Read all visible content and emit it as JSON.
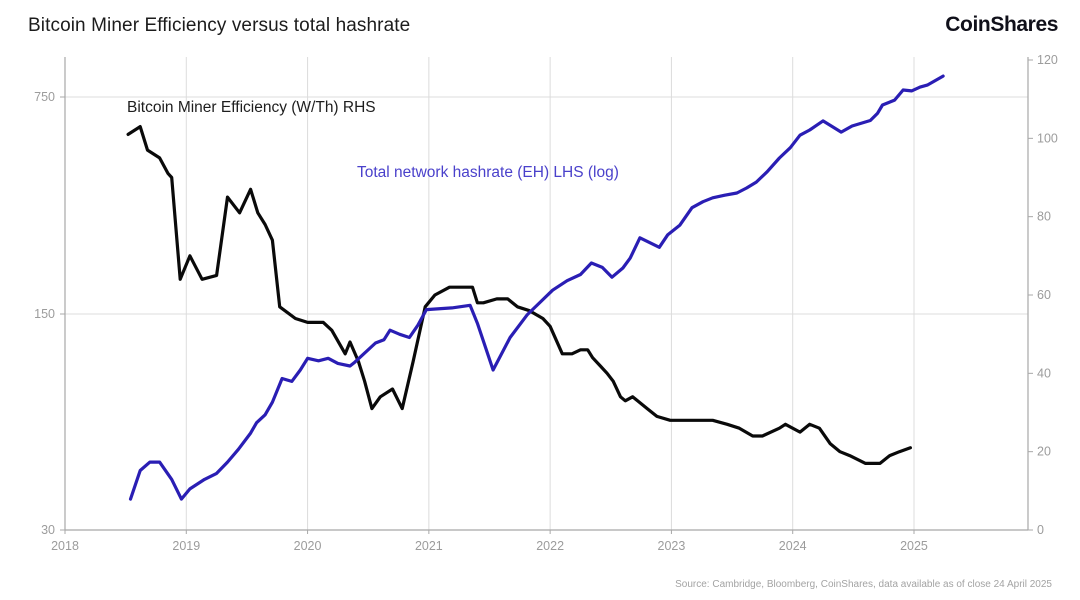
{
  "header": {
    "title": "Bitcoin Miner Efficiency versus total hashrate",
    "logo_text": "CoinShares"
  },
  "footer": {
    "source": "Source: Cambridge, Bloomberg, CoinShares, data available as of close 24 April 2025"
  },
  "colors": {
    "efficiency_line": "#0a0a0a",
    "hashrate_line": "#2a1eb4",
    "hashrate_label": "#4a41cb",
    "grid": "#dcdcdc",
    "axis": "#a8a8a8",
    "tick_text": "#9c9c9c"
  },
  "chart_data": {
    "type": "line",
    "title": "Bitcoin Miner Efficiency versus total hashrate",
    "x_axis": {
      "min": 2018,
      "max": 2025.94,
      "ticks": [
        2018,
        2019,
        2020,
        2021,
        2022,
        2023,
        2024,
        2025
      ]
    },
    "left_axis": {
      "scale": "log",
      "unit": "EH",
      "ticks": [
        750,
        150,
        30
      ]
    },
    "right_axis": {
      "scale": "linear",
      "unit": "W/Th",
      "min": 0,
      "max": 120,
      "ticks": [
        120,
        100,
        80,
        60,
        40,
        20,
        0
      ]
    },
    "grid": "on",
    "series": [
      {
        "name": "Bitcoin Miner Efficiency (W/Th) RHS",
        "axis": "right",
        "color": "#0a0a0a",
        "points": [
          [
            2018.52,
            101
          ],
          [
            2018.62,
            103
          ],
          [
            2018.68,
            97
          ],
          [
            2018.78,
            95
          ],
          [
            2018.85,
            91
          ],
          [
            2018.88,
            90
          ],
          [
            2018.95,
            64
          ],
          [
            2019.03,
            70
          ],
          [
            2019.13,
            64
          ],
          [
            2019.25,
            65
          ],
          [
            2019.34,
            85
          ],
          [
            2019.44,
            81
          ],
          [
            2019.53,
            87
          ],
          [
            2019.59,
            81
          ],
          [
            2019.65,
            78
          ],
          [
            2019.71,
            74
          ],
          [
            2019.77,
            57
          ],
          [
            2019.9,
            54
          ],
          [
            2020.0,
            53
          ],
          [
            2020.04,
            53
          ],
          [
            2020.13,
            53
          ],
          [
            2020.2,
            51
          ],
          [
            2020.31,
            45
          ],
          [
            2020.35,
            48
          ],
          [
            2020.42,
            43
          ],
          [
            2020.47,
            38
          ],
          [
            2020.53,
            31
          ],
          [
            2020.6,
            34
          ],
          [
            2020.7,
            36
          ],
          [
            2020.78,
            31
          ],
          [
            2020.87,
            43
          ],
          [
            2020.97,
            57
          ],
          [
            2021.05,
            60
          ],
          [
            2021.17,
            62
          ],
          [
            2021.36,
            62
          ],
          [
            2021.4,
            58
          ],
          [
            2021.45,
            58
          ],
          [
            2021.56,
            59
          ],
          [
            2021.65,
            59
          ],
          [
            2021.73,
            57
          ],
          [
            2021.83,
            56
          ],
          [
            2021.94,
            54
          ],
          [
            2022.0,
            52
          ],
          [
            2022.1,
            45
          ],
          [
            2022.18,
            45
          ],
          [
            2022.25,
            46
          ],
          [
            2022.31,
            46
          ],
          [
            2022.35,
            44
          ],
          [
            2022.41,
            42
          ],
          [
            2022.47,
            40
          ],
          [
            2022.52,
            38
          ],
          [
            2022.58,
            34
          ],
          [
            2022.62,
            33
          ],
          [
            2022.68,
            34
          ],
          [
            2022.8,
            31
          ],
          [
            2022.88,
            29
          ],
          [
            2022.99,
            28
          ],
          [
            2023.09,
            28
          ],
          [
            2023.34,
            28
          ],
          [
            2023.46,
            27
          ],
          [
            2023.56,
            26
          ],
          [
            2023.67,
            24
          ],
          [
            2023.75,
            24
          ],
          [
            2023.89,
            26
          ],
          [
            2023.94,
            27
          ],
          [
            2024.06,
            25
          ],
          [
            2024.14,
            27
          ],
          [
            2024.22,
            26
          ],
          [
            2024.31,
            22
          ],
          [
            2024.39,
            20
          ],
          [
            2024.47,
            19
          ],
          [
            2024.6,
            17
          ],
          [
            2024.72,
            17
          ],
          [
            2024.8,
            19
          ],
          [
            2024.88,
            20
          ],
          [
            2024.97,
            21
          ]
        ]
      },
      {
        "name": "Total network hashrate (EH) LHS (log)",
        "axis": "left",
        "color": "#2a1eb4",
        "points": [
          [
            2018.54,
            38
          ],
          [
            2018.62,
            47
          ],
          [
            2018.7,
            50
          ],
          [
            2018.78,
            50
          ],
          [
            2018.88,
            44
          ],
          [
            2018.96,
            38
          ],
          [
            2019.03,
            41
          ],
          [
            2019.15,
            44
          ],
          [
            2019.25,
            46
          ],
          [
            2019.34,
            50
          ],
          [
            2019.43,
            55
          ],
          [
            2019.53,
            62
          ],
          [
            2019.58,
            67
          ],
          [
            2019.65,
            71
          ],
          [
            2019.71,
            78
          ],
          [
            2019.79,
            93
          ],
          [
            2019.87,
            91
          ],
          [
            2019.94,
            99
          ],
          [
            2020.0,
            108
          ],
          [
            2020.09,
            106
          ],
          [
            2020.17,
            108
          ],
          [
            2020.25,
            104
          ],
          [
            2020.35,
            102
          ],
          [
            2020.39,
            105
          ],
          [
            2020.56,
            121
          ],
          [
            2020.63,
            124
          ],
          [
            2020.68,
            133
          ],
          [
            2020.76,
            129
          ],
          [
            2020.84,
            126
          ],
          [
            2020.91,
            138
          ],
          [
            2020.98,
            155
          ],
          [
            2021.19,
            157
          ],
          [
            2021.34,
            160
          ],
          [
            2021.4,
            140
          ],
          [
            2021.53,
            99
          ],
          [
            2021.67,
            126
          ],
          [
            2021.81,
            149
          ],
          [
            2021.92,
            164
          ],
          [
            2022.02,
            179
          ],
          [
            2022.14,
            192
          ],
          [
            2022.25,
            201
          ],
          [
            2022.34,
            219
          ],
          [
            2022.43,
            212
          ],
          [
            2022.51,
            197
          ],
          [
            2022.6,
            211
          ],
          [
            2022.66,
            227
          ],
          [
            2022.74,
            264
          ],
          [
            2022.9,
            246
          ],
          [
            2022.97,
            270
          ],
          [
            2023.07,
            290
          ],
          [
            2023.17,
            330
          ],
          [
            2023.26,
            345
          ],
          [
            2023.34,
            355
          ],
          [
            2023.44,
            362
          ],
          [
            2023.54,
            368
          ],
          [
            2023.62,
            382
          ],
          [
            2023.7,
            399
          ],
          [
            2023.79,
            431
          ],
          [
            2023.89,
            477
          ],
          [
            2023.98,
            515
          ],
          [
            2024.06,
            565
          ],
          [
            2024.14,
            587
          ],
          [
            2024.25,
            628
          ],
          [
            2024.4,
            578
          ],
          [
            2024.49,
            605
          ],
          [
            2024.64,
            630
          ],
          [
            2024.7,
            665
          ],
          [
            2024.74,
            707
          ],
          [
            2024.84,
            733
          ],
          [
            2024.91,
            790
          ],
          [
            2024.98,
            785
          ],
          [
            2025.05,
            807
          ],
          [
            2025.11,
            819
          ],
          [
            2025.24,
            876
          ]
        ]
      }
    ]
  }
}
